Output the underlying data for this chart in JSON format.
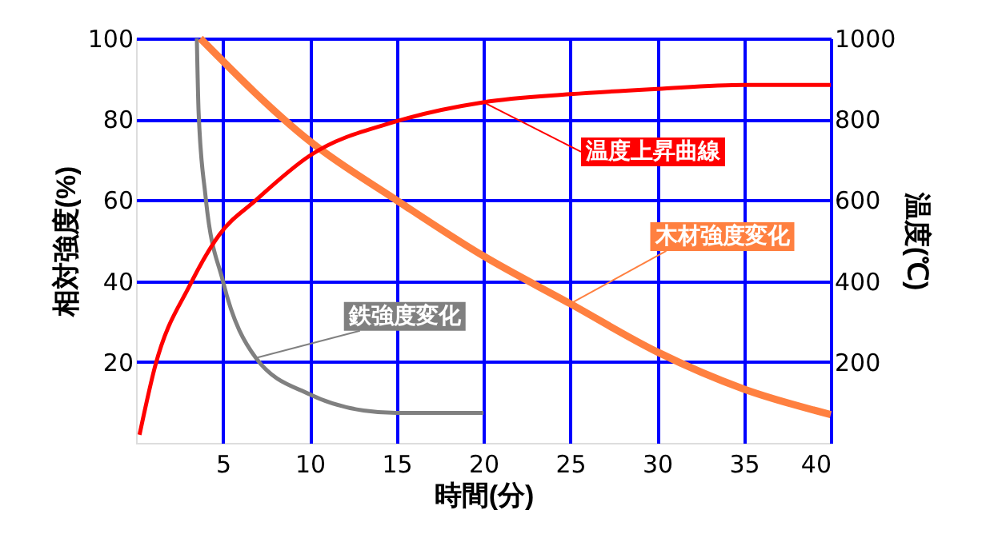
{
  "chart_data": {
    "type": "line",
    "xlabel": "時間(分)",
    "ylabel": "相対強度(%)",
    "y2label": "温度(℃)",
    "xlim": [
      0,
      40
    ],
    "xticks": [
      5,
      10,
      15,
      20,
      25,
      30,
      35,
      40
    ],
    "ylim": [
      0,
      100
    ],
    "yticks": [
      20,
      40,
      60,
      80,
      100
    ],
    "y2lim": [
      0,
      1000
    ],
    "y2ticks": [
      200,
      400,
      600,
      800,
      1000
    ],
    "grid": true,
    "legend": false,
    "marker": "none",
    "line_style": "solid",
    "series": [
      {
        "name": "温度上昇曲線",
        "color": "#ff0000",
        "axis": "y2",
        "x": [
          0.2,
          1.1,
          3.1,
          4.8,
          6.9,
          10,
          15,
          20,
          25,
          30,
          35,
          40
        ],
        "values": [
          20,
          190,
          390,
          515,
          600,
          710,
          795,
          842,
          862,
          875,
          885,
          885
        ]
      },
      {
        "name": "鉄強度変化",
        "color": "#808080",
        "x": [
          3.5,
          3.6,
          4.0,
          5.0,
          6.9,
          10,
          13.1,
          15,
          20
        ],
        "values": [
          100,
          82,
          61,
          40,
          21,
          12,
          8,
          7.4,
          7.4
        ]
      },
      {
        "name": "木材強度変化",
        "color": "#ff8040",
        "x": [
          3.7,
          10,
          15,
          20,
          25,
          30,
          35,
          40
        ],
        "values": [
          100,
          74.6,
          60,
          46.2,
          34.4,
          22.5,
          13.3,
          7
        ]
      }
    ]
  }
}
